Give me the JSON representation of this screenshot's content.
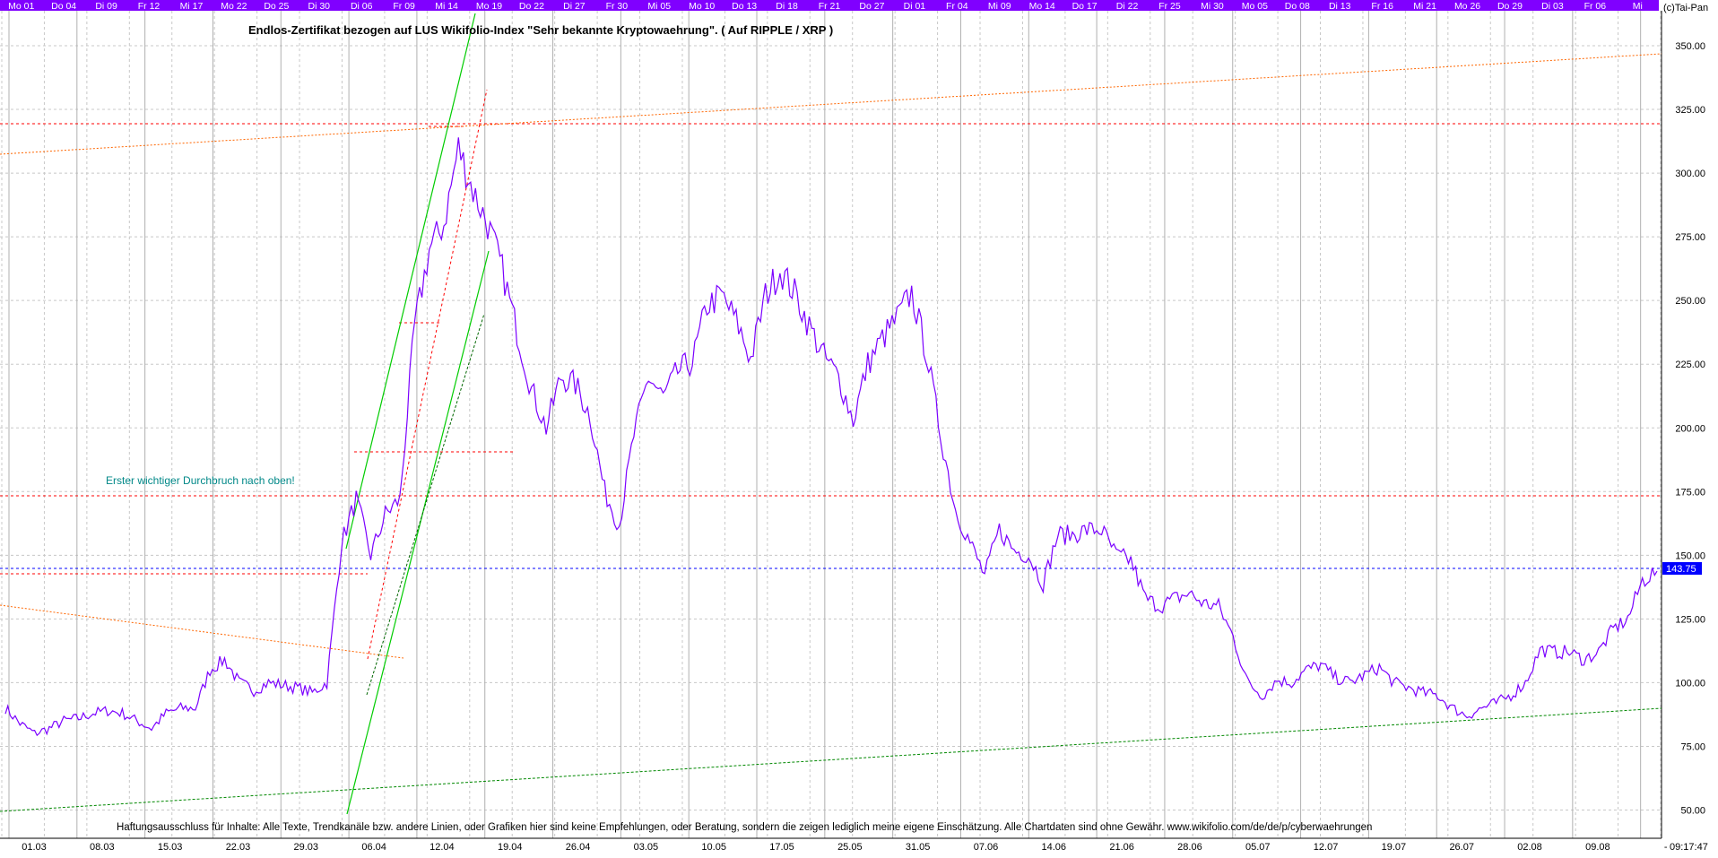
{
  "copyright": "(c)Tai-Pan",
  "title": "Endlos-Zertifikat bezogen auf LUS Wikifolio-Index \"Sehr bekannte Kryptowaehrung\". ( Auf RIPPLE / XRP )",
  "annotation": "Erster wichtiger Durchbruch nach oben!",
  "disclaimer": "Haftungsausschluss für Inhalte: Alle Texte, Trendkanäle bzw. andere Linien, oder Grafiken hier sind keine Empfehlungen, oder Beratung, sondern die zeigen lediglich meine eigene Einschätzung. Alle Chartdaten sind ohne Gewähr.  www.wikifolio.com/de/de/p/cyberwaehrungen",
  "time_label": "09:17:47",
  "top_day_labels": [
    "Mo 01",
    "Do 04",
    "Di 09",
    "Fr 12",
    "Mi 17",
    "Mo 22",
    "Do 25",
    "Di 30",
    "Di 06",
    "Fr 09",
    "Mi 14",
    "Mo 19",
    "Do 22",
    "Di 27",
    "Fr 30",
    "Mi 05",
    "Mo 10",
    "Do 13",
    "Di 18",
    "Fr 21",
    "Do 27",
    "Di 01",
    "Fr 04",
    "Mi 09",
    "Mo 14",
    "Do 17",
    "Di 22",
    "Fr 25",
    "Mi 30",
    "Mo 05",
    "Do 08",
    "Di 13",
    "Fr 16",
    "Mi 21",
    "Mo 26",
    "Do 29",
    "Di 03",
    "Fr 06",
    "Mi"
  ],
  "bottom_date_labels": [
    "01.03",
    "08.03",
    "15.03",
    "22.03",
    "29.03",
    "06.04",
    "12.04",
    "19.04",
    "26.04",
    "03.05",
    "10.05",
    "17.05",
    "25.05",
    "31.05",
    "07.06",
    "14.06",
    "21.06",
    "28.06",
    "05.07",
    "12.07",
    "19.07",
    "26.07",
    "02.08",
    "09.08",
    "-"
  ],
  "price_labels": [
    "350.00",
    "325.00",
    "300.00",
    "275.00",
    "250.00",
    "225.00",
    "200.00",
    "175.00",
    "150.00",
    "125.00",
    "100.00",
    "75.00",
    "50.00"
  ],
  "last_price_label": "143.75",
  "colors": {
    "price": "#7b00ff",
    "top_band": "#8000ff",
    "resistance": "#ff0000",
    "support": "#0000ff",
    "trend_up": "#00cc00",
    "channel": "#ff6600",
    "annotation": "#008888"
  },
  "chart_data": {
    "type": "line",
    "ylim": [
      40,
      360
    ],
    "y_ticks": [
      350,
      325,
      300,
      275,
      250,
      225,
      200,
      175,
      150,
      125,
      100,
      75,
      50
    ],
    "series": [
      {
        "values": [
          90,
          84,
          80,
          82,
          85,
          86,
          88,
          89,
          88,
          85,
          82,
          88,
          90,
          90,
          105,
          109,
          100,
          97,
          100,
          99,
          98,
          96,
          100,
          155,
          172,
          150,
          166,
          172,
          240,
          270,
          280,
          310,
          293,
          280,
          262,
          238,
          215,
          200,
          220,
          217,
          205,
          175,
          162,
          197,
          220,
          212,
          222,
          226,
          248,
          252,
          242,
          227,
          252,
          262,
          253,
          240,
          228,
          220,
          203,
          225,
          235,
          243,
          253,
          230,
          197,
          168,
          155,
          142,
          160,
          152,
          150,
          139,
          158,
          158,
          160,
          160,
          150,
          148,
          133,
          130,
          133,
          135,
          131,
          130,
          118,
          100,
          95,
          101,
          100,
          105,
          107,
          102,
          100,
          103,
          106,
          100,
          98,
          96,
          95,
          90,
          87,
          90,
          92,
          95,
          100,
          113,
          112,
          112,
          109,
          112,
          121,
          125,
          140,
          144
        ]
      }
    ],
    "last_value": 143.75,
    "reference_lines": {
      "red": [
        319,
        173
      ],
      "blue": [
        143.75
      ]
    },
    "trend_lines": {
      "green_support": [
        [
          0,
          47
        ],
        [
          113,
          88
        ]
      ],
      "orange_channel_top": [
        [
          0,
          307
        ],
        [
          113,
          347
        ]
      ]
    }
  }
}
